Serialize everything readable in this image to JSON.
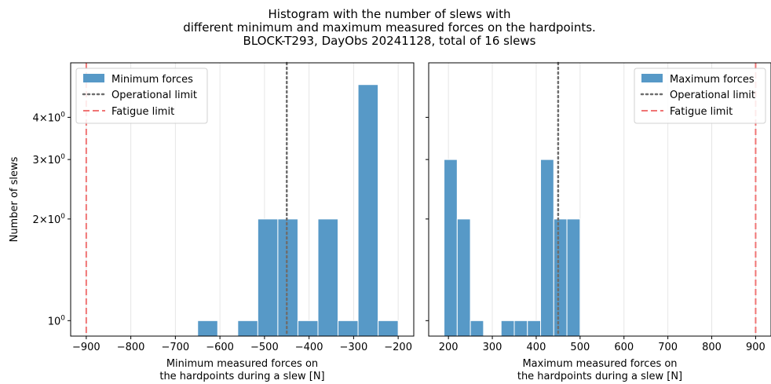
{
  "title_lines": [
    "Histogram with the number of slews with",
    "different minimum and maximum measured forces on the hardpoints.",
    "BLOCK-T293, DayObs 20241128, total of 16 slews"
  ],
  "colors": {
    "bar": "#5799c7",
    "bar_edge": "#ffffff",
    "operational_limit": "#6e6e6e",
    "fatigue_limit": "#f07575",
    "grid": "#e6e6e6"
  },
  "chart_data": [
    {
      "type": "bar",
      "panel": "left",
      "series": [
        {
          "name": "Minimum forces",
          "bins": [
            {
              "x0": -650,
              "x1": -605,
              "count": 1
            },
            {
              "x0": -560,
              "x1": -515,
              "count": 1
            },
            {
              "x0": -515,
              "x1": -470,
              "count": 2
            },
            {
              "x0": -470,
              "x1": -425,
              "count": 2
            },
            {
              "x0": -425,
              "x1": -380,
              "count": 1
            },
            {
              "x0": -380,
              "x1": -335,
              "count": 2
            },
            {
              "x0": -335,
              "x1": -290,
              "count": 1
            },
            {
              "x0": -290,
              "x1": -245,
              "count": 5
            },
            {
              "x0": -245,
              "x1": -200,
              "count": 1
            }
          ]
        }
      ],
      "xlabel": "Minimum measured forces on\nthe hardpoints during a slew [N]",
      "ylabel": "Number of slews",
      "xlim": [
        -935,
        -165
      ],
      "ylim": [
        0.9,
        5.8
      ],
      "yscale": "log",
      "xticks": [
        -900,
        -800,
        -700,
        -600,
        -500,
        -400,
        -300,
        -200
      ],
      "xtick_labels": [
        "−900",
        "−800",
        "−700",
        "−600",
        "−500",
        "−400",
        "−300",
        "−200"
      ],
      "yticks": [
        {
          "value": 1,
          "base": "10",
          "exp": "0"
        },
        {
          "value": 2,
          "mant": "2",
          "base": "10",
          "exp": "0"
        },
        {
          "value": 3,
          "mant": "3",
          "base": "10",
          "exp": "0"
        },
        {
          "value": 4,
          "mant": "4",
          "base": "10",
          "exp": "0"
        }
      ],
      "ytick_labels_visible": true,
      "operational_limit": -450,
      "fatigue_limit": -900,
      "grid": "x",
      "legend_position": "upper left",
      "legend_items": [
        "Minimum forces",
        "Operational limit",
        "Fatigue limit"
      ]
    },
    {
      "type": "bar",
      "panel": "right",
      "series": [
        {
          "name": "Maximum forces",
          "bins": [
            {
              "x0": 190,
              "x1": 220,
              "count": 3
            },
            {
              "x0": 220,
              "x1": 250,
              "count": 2
            },
            {
              "x0": 250,
              "x1": 280,
              "count": 1
            },
            {
              "x0": 320,
              "x1": 350,
              "count": 1
            },
            {
              "x0": 350,
              "x1": 380,
              "count": 1
            },
            {
              "x0": 380,
              "x1": 410,
              "count": 1
            },
            {
              "x0": 410,
              "x1": 440,
              "count": 3
            },
            {
              "x0": 440,
              "x1": 470,
              "count": 2
            },
            {
              "x0": 470,
              "x1": 500,
              "count": 2
            }
          ]
        }
      ],
      "xlabel": "Maximum measured forces on\nthe hardpoints during a slew [N]",
      "ylabel": "",
      "xlim": [
        155,
        935
      ],
      "ylim": [
        0.9,
        5.8
      ],
      "yscale": "log",
      "xticks": [
        200,
        300,
        400,
        500,
        600,
        700,
        800,
        900
      ],
      "xtick_labels": [
        "200",
        "300",
        "400",
        "500",
        "600",
        "700",
        "800",
        "900"
      ],
      "yticks": [
        {
          "value": 1
        },
        {
          "value": 2
        },
        {
          "value": 3
        },
        {
          "value": 4
        }
      ],
      "ytick_labels_visible": false,
      "operational_limit": 450,
      "fatigue_limit": 900,
      "grid": "x",
      "legend_position": "upper right",
      "legend_items": [
        "Maximum forces",
        "Operational limit",
        "Fatigue limit"
      ]
    }
  ]
}
